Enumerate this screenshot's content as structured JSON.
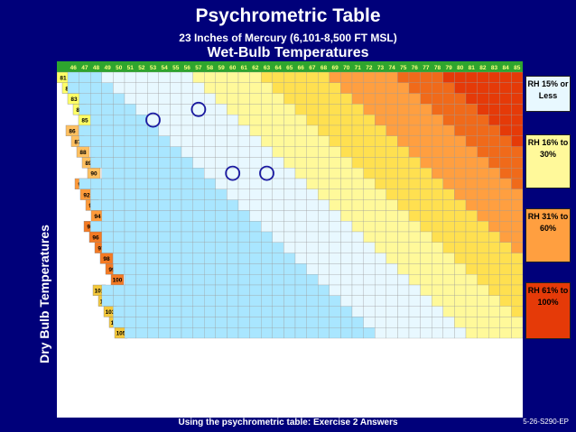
{
  "header": {
    "title": "Psychrometric Table",
    "subtitle": "23 Inches of Mercury (6,101-8,500 FT MSL)",
    "axis_title": "Wet-Bulb Temperatures"
  },
  "table": {
    "row_axis_label": "Dry Bulb Temperatures",
    "wet_bulb_headers": [
      46,
      47,
      48,
      49,
      50,
      51,
      52,
      53,
      54,
      55,
      56,
      57,
      58,
      59,
      60,
      61,
      62,
      63,
      64,
      65,
      66,
      67,
      68,
      69,
      70,
      71,
      72,
      73,
      74,
      75,
      76,
      77,
      78,
      79,
      80,
      81,
      82,
      83,
      84,
      85
    ],
    "row_blocks": [
      {
        "rows": [
          81,
          82,
          83,
          84,
          85
        ],
        "color": "#ffff66"
      },
      {
        "rows": [
          86,
          87,
          88,
          89,
          90
        ],
        "color": "#ffc060"
      },
      {
        "rows": [
          91,
          92,
          93,
          94
        ],
        "color": "#ff9a3a"
      },
      {
        "rows": [
          95,
          96,
          97,
          98,
          99,
          100
        ],
        "color": "#f47a23"
      },
      {
        "rows": [
          101,
          102,
          103,
          104,
          105
        ],
        "color": "#f4c83a"
      }
    ],
    "highlighted_cells": [
      "85/53",
      "84/57",
      "90/60",
      "90/63"
    ]
  },
  "legend": [
    {
      "label": "RH 15% or Less",
      "color": "#e8f8ff"
    },
    {
      "label": "RH 16% to 30%",
      "color": "#fff99a"
    },
    {
      "label": "RH 31% to 60%",
      "color": "#ff9f40"
    },
    {
      "label": "RH 61% to 100%",
      "color": "#e53a08"
    }
  ],
  "footer": {
    "caption": "Using the psychrometric table:  Exercise 2 Answers",
    "code": "5-26-S290-EP"
  }
}
